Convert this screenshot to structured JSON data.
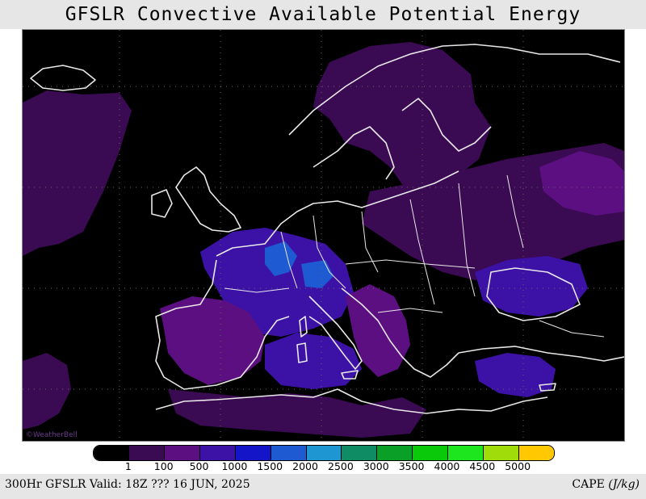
{
  "title": "GFSLR Convective Available Potential Energy",
  "footer": {
    "left": "300Hr GFSLR Valid: 18Z ??? 16 JUN, 2025",
    "right_var": "CAPE",
    "right_unit": "(J/kg)"
  },
  "watermark": "©WeatherBell",
  "colorbar": {
    "colors": [
      "#000000",
      "#3a0a52",
      "#5c0f80",
      "#3c12a6",
      "#1414c8",
      "#1e5ad2",
      "#1e96d2",
      "#0f8c64",
      "#0aa028",
      "#0ac80a",
      "#1ee61e",
      "#a0dc0a",
      "#ffc800"
    ],
    "labels": [
      "1",
      "100",
      "500",
      "1000",
      "1500",
      "2000",
      "2500",
      "3000",
      "3500",
      "4000",
      "4500",
      "5000"
    ]
  },
  "map": {
    "region": "Europe",
    "variable": "CAPE",
    "blobs": [
      {
        "name": "cape-area-atlantic-west",
        "level": 1
      },
      {
        "name": "cape-area-scandinavia",
        "level": 1
      },
      {
        "name": "cape-area-eastern-europe",
        "level": 1
      },
      {
        "name": "cape-area-russia-east",
        "level": 2
      },
      {
        "name": "cape-area-france",
        "level": 3
      },
      {
        "name": "cape-area-alps",
        "level": 5
      },
      {
        "name": "cape-area-iberia",
        "level": 2
      },
      {
        "name": "cape-area-western-mediterranean",
        "level": 3
      },
      {
        "name": "cape-area-balkans",
        "level": 2
      },
      {
        "name": "cape-area-black-sea",
        "level": 3
      },
      {
        "name": "cape-area-turkey",
        "level": 3
      },
      {
        "name": "cape-area-north-africa",
        "level": 1
      },
      {
        "name": "cape-area-atlantic-southwest",
        "level": 1
      }
    ]
  }
}
